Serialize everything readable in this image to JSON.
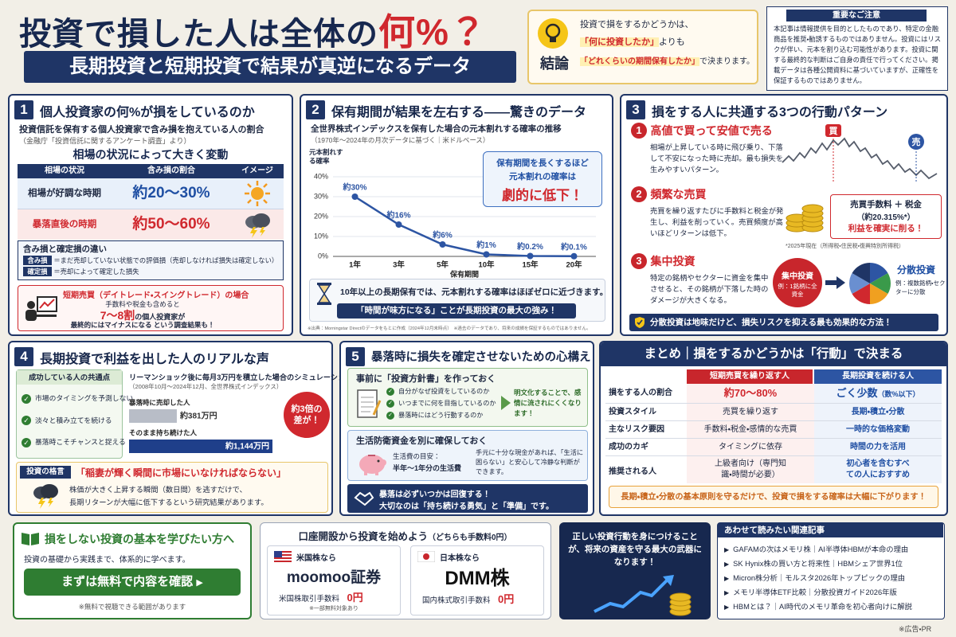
{
  "header": {
    "title_main": "投資で損した人は全体の",
    "title_accent": "何%？",
    "subtitle": "長期投資と短期投資で結果が真逆になるデータ"
  },
  "conclusion": {
    "label": "結論",
    "line1": "投資で損をするかどうかは、",
    "line2_accent": "「何に投資したか」",
    "line2_rest": "よりも",
    "line3_accent": "「どれくらいの期間保有したか」",
    "line3_rest": "で決まります。"
  },
  "notice": {
    "title": "重要なご注意",
    "text": "本記事は情報提供を目的としたものであり、特定の金融商品を推奨・勧誘するものではありません。投資にはリスクが伴い、元本を割り込む可能性があります。投資に関する最終的な判断はご自身の責任で行ってください。掲載データは各種公開資料に基づいていますが、正確性を保証するものではありません。"
  },
  "section1": {
    "number": "1",
    "title": "個人投資家の何%が損をしているのか",
    "lead": "投資信託を保有する個人投資家で含み損を抱えている人の割合",
    "source": "（金融庁「投資信託に関するアンケート調査」より）",
    "heading": "相場の状況によって大きく変動",
    "table": {
      "headers": [
        "相場の状況",
        "含み損の割合",
        "イメージ"
      ],
      "rows": [
        [
          "相場が好調な時期",
          "約20〜30%"
        ],
        [
          "暴落直後の時期",
          "約50〜60%"
        ]
      ]
    },
    "difference": {
      "title": "含み損と確定損の違い",
      "items": [
        {
          "term": "含み損",
          "desc": "＝まだ売却していない状態での評価損（売却しなければ損失は確定しない）"
        },
        {
          "term": "確定損",
          "desc": "＝売却によって確定した損失"
        }
      ]
    },
    "short_term": {
      "title": "短期売買（デイトレード・スイングトレード）の場合",
      "line1": "手数料や税金も含めると",
      "highlight": "7〜8割",
      "line2": "の個人投資家が",
      "line3": "最終的にはマイナスになる という調査結果も！"
    }
  },
  "section2": {
    "number": "2",
    "title": "保有期間が結果を左右する——驚きのデータ",
    "lead": "全世界株式インデックスを保有した場合の元本割れする確率の推移",
    "source": "（1970年〜2024年の月次データに基づく｜米ドルベース）",
    "chart": {
      "type": "line",
      "y_label": "元本割れする確率",
      "x_label": "保有期間",
      "categories": [
        "1年",
        "3年",
        "5年",
        "10年",
        "15年",
        "20年"
      ],
      "values": [
        30,
        16,
        6,
        1,
        0.2,
        0.1
      ],
      "value_labels": [
        "約30%",
        "約16%",
        "約6%",
        "約1%",
        "約0.2%",
        "約0.1%"
      ],
      "ylim": [
        0,
        40
      ],
      "yticks": [
        {
          "value": 0,
          "label": "0%"
        },
        {
          "value": 10,
          "label": "10%"
        },
        {
          "value": 20,
          "label": "20%"
        },
        {
          "value": 30,
          "label": "30%"
        },
        {
          "value": 40,
          "label": "40%"
        }
      ],
      "color": "#2d55a3",
      "grid": true
    },
    "callout": {
      "line1": "保有期間を長くするほど",
      "line2": "元本割れの確率は",
      "line3": "劇的に低下！"
    },
    "note": "10年以上の長期保有では、元本割れする確率はほぼゼロに近づきます。",
    "banner": "「時間が味方になる」ことが長期投資の最大の強み！",
    "footnote": "※出典：Morningstar Directのデータをもとに作成（2024年12月末時点）　※過去のデータであり、将来の成績を保証するものではありません。"
  },
  "section3": {
    "number": "3",
    "title": "損をする人に共通する3つの行動パターン",
    "items": [
      {
        "number": "1",
        "title": "高値で買って安値で売る",
        "desc": "相場が上昇している時に飛び乗り、下落して不安になった時に売却。最も損失を生みやすいパターン。",
        "buy": "買",
        "sell": "売"
      },
      {
        "number": "2",
        "title": "頻繁な売買",
        "desc": "売買を繰り返すたびに手数料と税金が発生し、利益を削っていく。売買頻度が高いほどリターンは低下。",
        "box_line1": "売買手数料 ＋ 税金",
        "box_line2": "（約20.315%*）",
        "box_line3": "利益を確実に削る！",
        "note": "*2025年現在（所得税・住民税・復興特別所得税）"
      },
      {
        "number": "3",
        "title": "集中投資",
        "desc": "特定の銘柄やセクターに資金を集中させると、その銘柄が下落した時のダメージが大きくなる。",
        "concentrated": "集中投資",
        "concentrated_example": "例：1銘柄に全資金",
        "diversified": "分散投資",
        "diversified_example": "例：複数銘柄・セクターに分散"
      }
    ],
    "banner": "分散投資は地味だけど、損失リスクを抑える最も効果的な方法！"
  },
  "section4": {
    "number": "4",
    "title": "長期投資で利益を出した人のリアルな声",
    "traits": {
      "title": "成功している人の共通点",
      "items": [
        "市場のタイミングを予測しない",
        "淡々と積み立てを続ける",
        "暴落時こそチャンスと捉える"
      ]
    },
    "simulation": {
      "type": "bar",
      "title": "リーマンショック後に毎月3万円を積立した場合のシミュレーション",
      "subtitle": "（2008年10月〜2024年12月、全世界株式インデックス）",
      "categories": [
        "暴落時に売却した人",
        "そのまま持ち続けた人"
      ],
      "values": [
        381,
        1144
      ],
      "value_labels": [
        "約381万円",
        "約1,144万円"
      ],
      "colors": [
        "#b8bdc7",
        "#1f3f8a"
      ],
      "badge": "約3倍の差が！"
    },
    "maxim": {
      "label": "投資の格言",
      "quote": "「稲妻が輝く瞬間に市場にいなければならない」",
      "line1": "株価が大きく上昇する瞬間（数日間）を逃すだけで、",
      "line2": "長期リターンが大幅に低下するという研究結果があります。"
    }
  },
  "section5": {
    "number": "5",
    "title": "暴落時に損失を確定させないための心構え",
    "policy": {
      "title": "事前に「投資方針書」を作っておく",
      "checks": [
        "自分がなぜ投資をしているのか",
        "いつまでに何を目指しているのか",
        "暴落時にはどう行動するのか"
      ],
      "result": "明文化することで、感情に流されにくくなります！"
    },
    "fund": {
      "title": "生活防衛資金を別に確保しておく",
      "label": "生活費の目安：",
      "amount": "半年〜1年分の生活費",
      "desc": "手元に十分な現金があれば、「生活に困らない」と安心して冷静な判断ができます。"
    },
    "banner_line1": "暴落は必ずいつかは回復する！",
    "banner_line2": "大切なのは「持ち続ける勇気」と「準備」です。"
  },
  "summary": {
    "title": "まとめ｜損をするかどうかは「行動」で決まる",
    "headers": [
      "短期売買を繰り返す人",
      "長期投資を続ける人"
    ],
    "rows": [
      {
        "label": "損をする人の割合",
        "short": "約70〜80%",
        "long": "ごく少数",
        "long_note": "（数%以下）"
      },
      {
        "label": "投資スタイル",
        "short": "売買を繰り返す",
        "long": "長期・積立・分散"
      },
      {
        "label": "主なリスク要因",
        "short": "手数料・税金・感情的な売買",
        "long": "一時的な価格変動"
      },
      {
        "label": "成功のカギ",
        "short": "タイミングに依存",
        "long": "時間の力を活用"
      },
      {
        "label": "推奨される人",
        "short": "上級者向け（専門知識・時間が必要）",
        "long": "初心者を含むすべての人におすすめ"
      }
    ],
    "banner": "長期・積立・分散の基本原則を守るだけで、投資で損をする確率は大幅に下がります！"
  },
  "learn": {
    "title": "損をしない投資の基本を学びたい方へ",
    "desc": "投資の基礎から実践まで、体系的に学べます。",
    "button": "まずは無料で内容を確認",
    "note": "※無料で視聴できる範囲があります"
  },
  "accounts": {
    "title": "口座開設から投資を始めよう",
    "title_note": "（どちらも手数料0円）",
    "items": [
      {
        "label": "米国株なら",
        "brand": "moomoo証券",
        "fee_label": "米国株取引手数料",
        "fee": "0円",
        "note": "※一部無料対象あり"
      },
      {
        "label": "日本株なら",
        "brand": "DMM株",
        "fee_label": "国内株式取引手数料",
        "fee": "0円"
      }
    ]
  },
  "promo": {
    "text": "正しい投資行動を身につけることが、将来の資産を守る最大の武器になります！"
  },
  "articles": {
    "title": "あわせて読みたい関連記事",
    "items": [
      "GAFAMの次はメモリ株｜AI半導体HBMが本命の理由",
      "SK Hynix株の買い方と将来性｜HBMシェア世界1位",
      "Micron株分析｜モルスタ2026年トップピックの理由",
      "メモリ半導体ETF比較｜分散投資ガイド2026年版",
      "HBMとは？｜AI時代のメモリ革命を初心者向けに解説"
    ]
  },
  "footer": "※広告・PR"
}
